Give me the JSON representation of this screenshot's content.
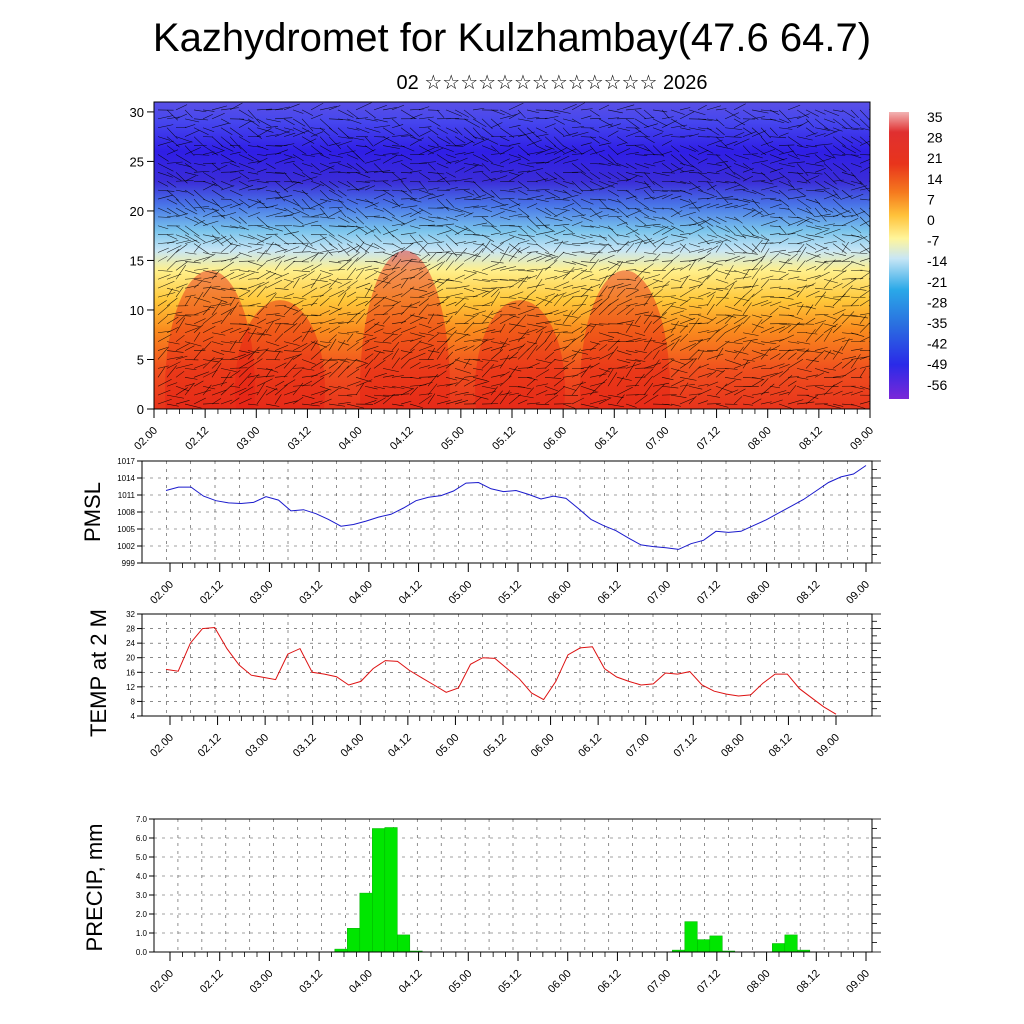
{
  "header": {
    "title": "Kazhydromet for Kulzhambay(47.6 64.7)",
    "subtitle": "02 ☆☆☆☆☆☆☆☆☆☆☆☆☆ 2026"
  },
  "colors": {
    "pmsl_line": "#1a1acc",
    "temp_line": "#dd1111",
    "precip_bar": "#00e600"
  },
  "chart_data": [
    {
      "type": "heatmap",
      "name": "cross-section",
      "title": "",
      "x_tick_labels": [
        "02.00",
        "02.12",
        "03.00",
        "03.12",
        "04.00",
        "04.12",
        "05.00",
        "05.12",
        "06.00",
        "06.12",
        "07.00",
        "07.12",
        "08.00",
        "08.12",
        "09.00"
      ],
      "y_ticks": [
        0,
        5,
        10,
        15,
        20,
        25,
        30
      ],
      "ylim": [
        0,
        31
      ],
      "colorbar_labels": [
        "35",
        "28",
        "21",
        "14",
        "7",
        "0",
        "-7",
        "-14",
        "-21",
        "-28",
        "-35",
        "-42",
        "-49",
        "-56"
      ],
      "profile": [
        {
          "level": 0,
          "color": "#e8341c"
        },
        {
          "level": 4,
          "color": "#f0501e"
        },
        {
          "level": 8,
          "color": "#fa8c1e"
        },
        {
          "level": 11,
          "color": "#ffc83a"
        },
        {
          "level": 14,
          "color": "#fff08c"
        },
        {
          "level": 16,
          "color": "#c8e6f5"
        },
        {
          "level": 18,
          "color": "#7ac4ec"
        },
        {
          "level": 20.5,
          "color": "#4a78e8"
        },
        {
          "level": 23,
          "color": "#3a2cd8"
        },
        {
          "level": 26,
          "color": "#2f1ee6"
        },
        {
          "level": 29,
          "color": "#4646ee"
        },
        {
          "level": 31,
          "color": "#5a50e6"
        }
      ]
    },
    {
      "type": "line",
      "name": "PMSL",
      "ylabel": "PMSL",
      "ylim": [
        999,
        1017
      ],
      "y_ticks": [
        999,
        1002,
        1005,
        1008,
        1011,
        1014,
        1017
      ],
      "x_tick_labels": [
        "02.00",
        "02.12",
        "03.00",
        "03.12",
        "04.00",
        "04.12",
        "05.00",
        "05.12",
        "06.00",
        "06.12",
        "07.00",
        "07.12",
        "08.00",
        "08.12",
        "09.00"
      ],
      "series": [
        {
          "name": "PMSL",
          "values": [
            1011.8,
            1012.4,
            1012.4,
            1010.8,
            1010.0,
            1009.6,
            1009.5,
            1009.7,
            1010.7,
            1010.1,
            1008.2,
            1008.4,
            1007.7,
            1006.7,
            1005.5,
            1005.8,
            1006.4,
            1007.1,
            1007.6,
            1008.7,
            1010.0,
            1010.6,
            1010.9,
            1011.7,
            1013.1,
            1013.2,
            1012.1,
            1011.6,
            1011.8,
            1011.1,
            1010.3,
            1010.8,
            1010.4,
            1008.6,
            1006.7,
            1005.6,
            1004.7,
            1003.4,
            1002.2,
            1001.9,
            1001.7,
            1001.4,
            1002.4,
            1003.0,
            1004.6,
            1004.4,
            1004.6,
            1005.6,
            1006.6,
            1007.8,
            1009.0,
            1010.2,
            1011.7,
            1013.2,
            1014.2,
            1014.7,
            1016.2
          ]
        }
      ]
    },
    {
      "type": "line",
      "name": "TEMP at 2 M",
      "ylabel": "TEMP at 2 M",
      "ylim": [
        4,
        32
      ],
      "y_ticks": [
        4,
        8,
        12,
        16,
        20,
        24,
        28,
        32
      ],
      "x_tick_labels": [
        "02.00",
        "02.12",
        "03.00",
        "03.12",
        "04.00",
        "04.12",
        "05.00",
        "05.12",
        "06.00",
        "06.12",
        "07.00",
        "07.12",
        "08.00",
        "08.12",
        "09.00"
      ],
      "series": [
        {
          "name": "TEMP",
          "values": [
            16.8,
            16.3,
            24.0,
            28.0,
            28.3,
            22.5,
            18.0,
            15.2,
            14.6,
            14.0,
            21.0,
            22.5,
            16.0,
            15.5,
            14.8,
            12.5,
            13.5,
            17.0,
            19.2,
            19.0,
            16.5,
            14.5,
            12.5,
            10.5,
            11.7,
            18.2,
            20.0,
            19.8,
            17.0,
            14.2,
            10.3,
            8.5,
            13.5,
            20.8,
            22.7,
            23.0,
            17.0,
            14.7,
            13.5,
            12.5,
            12.8,
            15.8,
            15.5,
            16.2,
            12.5,
            10.8,
            10.0,
            9.5,
            9.8,
            13.0,
            15.5,
            15.5,
            11.5,
            9.0,
            6.5,
            4.5
          ]
        }
      ]
    },
    {
      "type": "bar",
      "name": "PRECIP",
      "ylabel": "PRECIP, mm",
      "ylim": [
        0,
        7
      ],
      "y_tick_labels": [
        "0.0",
        "1.0",
        "2.0",
        "3.0",
        "4.0",
        "5.0",
        "6.0",
        "7.0"
      ],
      "x_tick_labels": [
        "02.00",
        "02.12",
        "03.00",
        "03.12",
        "04.00",
        "04.12",
        "05.00",
        "05.12",
        "06.00",
        "06.12",
        "07.00",
        "07.12",
        "08.00",
        "08.12",
        "09.00"
      ],
      "values": [
        0,
        0,
        0,
        0,
        0,
        0,
        0,
        0,
        0,
        0,
        0,
        0,
        0,
        0,
        0.15,
        1.25,
        3.1,
        6.5,
        6.55,
        0.9,
        0.05,
        0,
        0,
        0,
        0,
        0,
        0,
        0,
        0,
        0,
        0,
        0,
        0,
        0,
        0,
        0,
        0,
        0,
        0,
        0,
        0,
        0.1,
        1.6,
        0.65,
        0.85,
        0.05,
        0,
        0,
        0,
        0.45,
        0.9,
        0.1,
        0,
        0,
        0,
        0,
        0
      ]
    }
  ]
}
